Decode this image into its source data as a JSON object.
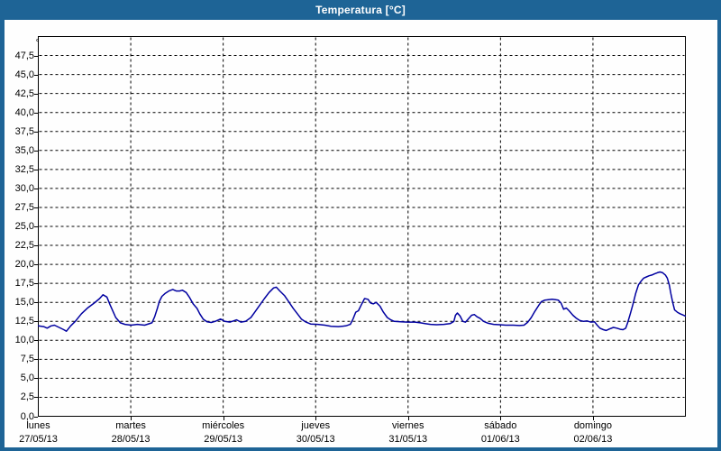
{
  "window": {
    "title": "Temperatura [°C]"
  },
  "colors": {
    "titlebar_bg": "#1e6496",
    "window_border": "#1e6496",
    "title_text": "#ffffff",
    "plot_background": "#fefefe",
    "frame": "#000000",
    "grid": "#000000",
    "series": "#0000a0",
    "label_text": "#000000"
  },
  "chart_data": {
    "type": "line",
    "title": "Temperatura [°C]",
    "unit_label": "°C",
    "ylabel": "Temperatura [°C]",
    "ylim": [
      0,
      50
    ],
    "ytick_step": 2.5,
    "ytick_labels": [
      "0,0",
      "2,5",
      "5,0",
      "7,5",
      "10,0",
      "12,5",
      "15,0",
      "17,5",
      "20,0",
      "22,5",
      "25,0",
      "27,5",
      "30,0",
      "32,5",
      "35,0",
      "37,5",
      "40,0",
      "42,5",
      "45,0",
      "47,5"
    ],
    "xlim_hours": [
      0,
      168
    ],
    "x_day_ticks": [
      {
        "name": "lunes",
        "date": "27/05/13"
      },
      {
        "name": "martes",
        "date": "28/05/13"
      },
      {
        "name": "miércoles",
        "date": "29/05/13"
      },
      {
        "name": "jueves",
        "date": "30/05/13"
      },
      {
        "name": "viernes",
        "date": "31/05/13"
      },
      {
        "name": "sábado",
        "date": "01/06/13"
      },
      {
        "name": "domingo",
        "date": "02/06/13"
      }
    ],
    "grid_style": "dashed",
    "legend_position": "none",
    "series": [
      {
        "name": "Temperatura",
        "color": "#0000a0",
        "points_hours_degC": [
          [
            0,
            11.9
          ],
          [
            1.4,
            11.8
          ],
          [
            2.3,
            11.6
          ],
          [
            3.3,
            11.9
          ],
          [
            4.2,
            12.0
          ],
          [
            5.4,
            11.7
          ],
          [
            6.6,
            11.4
          ],
          [
            7.3,
            11.2
          ],
          [
            8.4,
            11.9
          ],
          [
            9.6,
            12.5
          ],
          [
            11.2,
            13.5
          ],
          [
            12.9,
            14.3
          ],
          [
            14.5,
            14.9
          ],
          [
            15.9,
            15.5
          ],
          [
            16.8,
            16.0
          ],
          [
            17.8,
            15.7
          ],
          [
            18.7,
            14.6
          ],
          [
            20.1,
            13.0
          ],
          [
            21.3,
            12.3
          ],
          [
            22.5,
            12.1
          ],
          [
            24.1,
            12.0
          ],
          [
            25.7,
            12.1
          ],
          [
            27.6,
            12.0
          ],
          [
            29.5,
            12.3
          ],
          [
            30.2,
            13.1
          ],
          [
            30.9,
            14.2
          ],
          [
            31.4,
            15.1
          ],
          [
            32.1,
            15.8
          ],
          [
            33.0,
            16.2
          ],
          [
            33.9,
            16.5
          ],
          [
            34.9,
            16.7
          ],
          [
            35.8,
            16.5
          ],
          [
            36.7,
            16.5
          ],
          [
            37.4,
            16.6
          ],
          [
            38.4,
            16.3
          ],
          [
            39.3,
            15.6
          ],
          [
            40.2,
            14.8
          ],
          [
            41.2,
            14.2
          ],
          [
            41.9,
            13.5
          ],
          [
            42.8,
            12.8
          ],
          [
            43.8,
            12.45
          ],
          [
            44.9,
            12.35
          ],
          [
            45.9,
            12.5
          ],
          [
            47.3,
            12.8
          ],
          [
            48.4,
            12.5
          ],
          [
            49.8,
            12.4
          ],
          [
            51.5,
            12.7
          ],
          [
            52.6,
            12.4
          ],
          [
            53.8,
            12.5
          ],
          [
            55.2,
            13.0
          ],
          [
            56.2,
            13.7
          ],
          [
            57.3,
            14.5
          ],
          [
            58.7,
            15.5
          ],
          [
            59.9,
            16.3
          ],
          [
            61.1,
            16.9
          ],
          [
            61.8,
            17.0
          ],
          [
            62.7,
            16.5
          ],
          [
            63.9,
            15.9
          ],
          [
            65.0,
            15.1
          ],
          [
            66.2,
            14.2
          ],
          [
            67.4,
            13.4
          ],
          [
            68.3,
            12.8
          ],
          [
            69.5,
            12.4
          ],
          [
            70.7,
            12.15
          ],
          [
            72.5,
            12.1
          ],
          [
            74.4,
            12.0
          ],
          [
            76.0,
            11.85
          ],
          [
            77.9,
            11.8
          ],
          [
            79.8,
            11.9
          ],
          [
            81.0,
            12.1
          ],
          [
            81.7,
            12.8
          ],
          [
            82.4,
            13.7
          ],
          [
            83.1,
            13.9
          ],
          [
            83.8,
            14.6
          ],
          [
            84.7,
            15.5
          ],
          [
            85.6,
            15.4
          ],
          [
            86.3,
            14.9
          ],
          [
            87.0,
            14.8
          ],
          [
            87.7,
            15.0
          ],
          [
            88.7,
            14.5
          ],
          [
            89.6,
            13.7
          ],
          [
            90.6,
            13.0
          ],
          [
            91.5,
            12.7
          ],
          [
            92.4,
            12.5
          ],
          [
            94.1,
            12.45
          ],
          [
            95.9,
            12.4
          ],
          [
            97.8,
            12.4
          ],
          [
            99.2,
            12.3
          ],
          [
            100.4,
            12.2
          ],
          [
            101.8,
            12.1
          ],
          [
            103.4,
            12.05
          ],
          [
            105.3,
            12.1
          ],
          [
            106.9,
            12.2
          ],
          [
            107.9,
            12.5
          ],
          [
            108.3,
            13.3
          ],
          [
            108.8,
            13.6
          ],
          [
            109.5,
            13.2
          ],
          [
            110.2,
            12.5
          ],
          [
            110.9,
            12.4
          ],
          [
            111.8,
            12.9
          ],
          [
            112.5,
            13.3
          ],
          [
            113.2,
            13.4
          ],
          [
            113.9,
            13.1
          ],
          [
            114.7,
            12.9
          ],
          [
            115.6,
            12.5
          ],
          [
            116.8,
            12.25
          ],
          [
            118.2,
            12.1
          ],
          [
            119.8,
            12.05
          ],
          [
            121.4,
            12.0
          ],
          [
            123.3,
            12.0
          ],
          [
            124.9,
            11.95
          ],
          [
            126.1,
            12.0
          ],
          [
            127.1,
            12.4
          ],
          [
            128.0,
            13.0
          ],
          [
            128.9,
            13.8
          ],
          [
            129.9,
            14.6
          ],
          [
            130.6,
            15.1
          ],
          [
            131.5,
            15.3
          ],
          [
            132.4,
            15.35
          ],
          [
            133.4,
            15.4
          ],
          [
            134.3,
            15.35
          ],
          [
            135.0,
            15.3
          ],
          [
            135.7,
            14.9
          ],
          [
            136.4,
            14.1
          ],
          [
            137.1,
            14.25
          ],
          [
            137.8,
            13.9
          ],
          [
            138.8,
            13.3
          ],
          [
            139.7,
            12.9
          ],
          [
            140.6,
            12.6
          ],
          [
            141.6,
            12.5
          ],
          [
            142.5,
            12.55
          ],
          [
            143.4,
            12.4
          ],
          [
            144.4,
            12.45
          ],
          [
            145.1,
            12.0
          ],
          [
            145.8,
            11.6
          ],
          [
            146.7,
            11.4
          ],
          [
            147.4,
            11.3
          ],
          [
            148.3,
            11.5
          ],
          [
            149.3,
            11.7
          ],
          [
            150.2,
            11.6
          ],
          [
            151.1,
            11.45
          ],
          [
            151.8,
            11.4
          ],
          [
            152.5,
            11.6
          ],
          [
            153.0,
            12.3
          ],
          [
            153.7,
            13.5
          ],
          [
            154.4,
            14.8
          ],
          [
            155.1,
            16.2
          ],
          [
            155.8,
            17.3
          ],
          [
            156.5,
            17.8
          ],
          [
            157.2,
            18.2
          ],
          [
            157.9,
            18.35
          ],
          [
            158.6,
            18.5
          ],
          [
            159.3,
            18.6
          ],
          [
            160.0,
            18.75
          ],
          [
            160.7,
            18.9
          ],
          [
            161.4,
            19.0
          ],
          [
            162.1,
            18.9
          ],
          [
            162.8,
            18.6
          ],
          [
            163.3,
            18.2
          ],
          [
            163.8,
            17.3
          ],
          [
            164.2,
            16.2
          ],
          [
            164.7,
            15.0
          ],
          [
            165.2,
            14.0
          ],
          [
            165.9,
            13.7
          ],
          [
            166.6,
            13.5
          ],
          [
            167.3,
            13.35
          ],
          [
            168,
            13.2
          ]
        ]
      }
    ]
  }
}
